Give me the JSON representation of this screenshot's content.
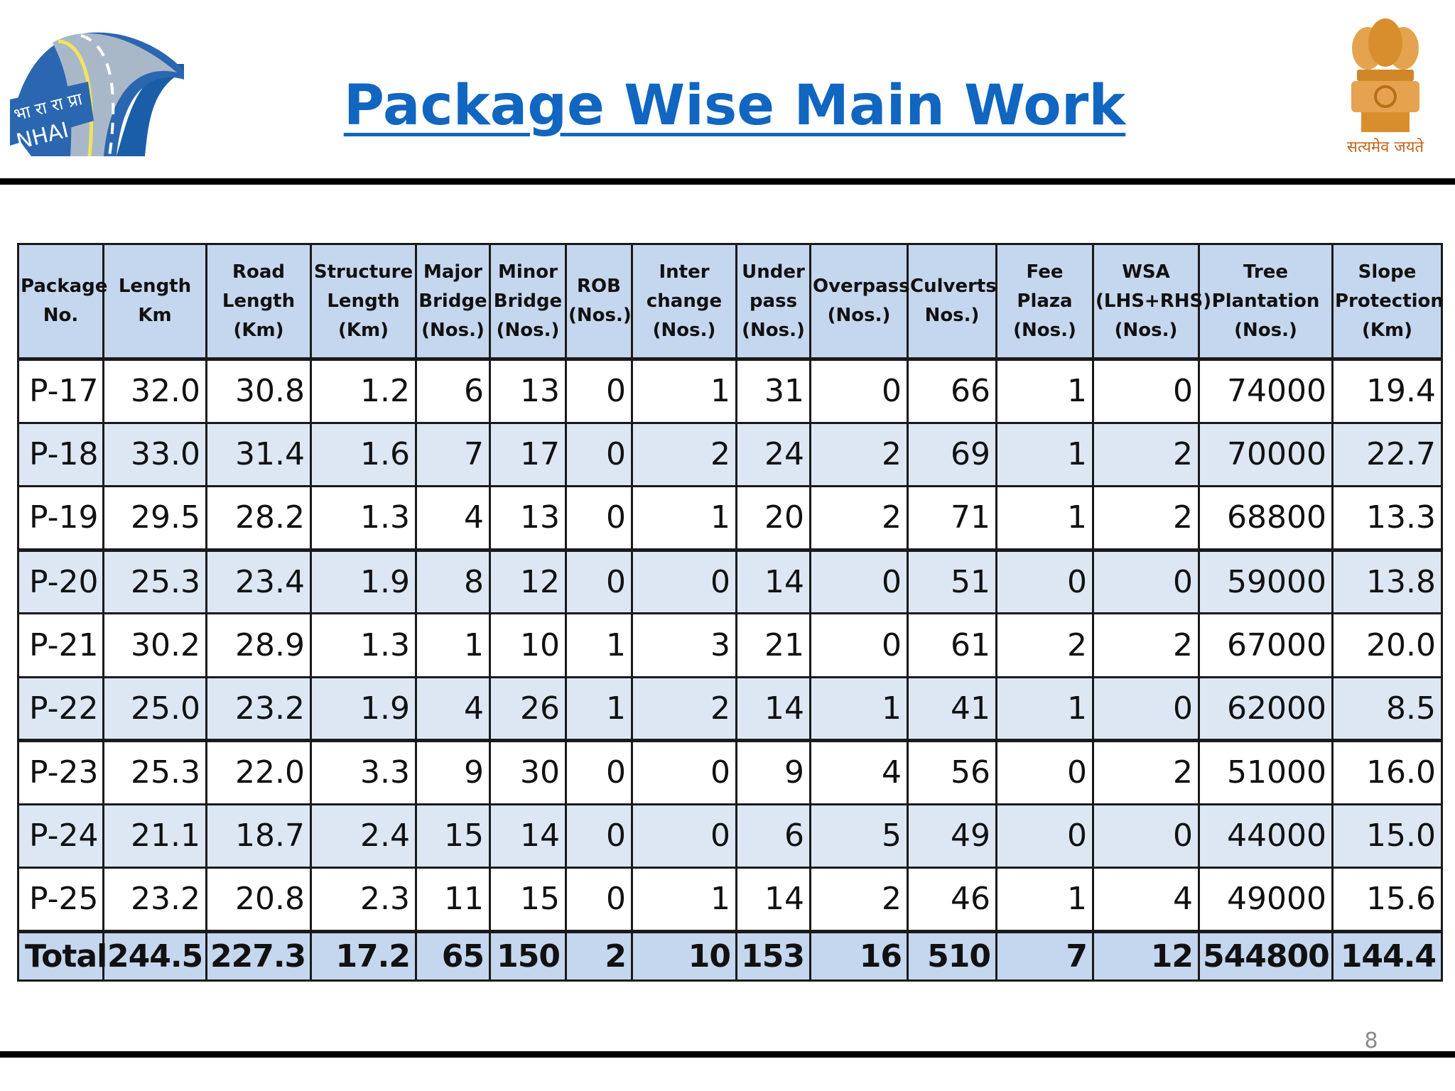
{
  "slide": {
    "title": "Package Wise Main Work",
    "page_number": "8",
    "logo_text": "भा रा रा प्रा NHAI",
    "emblem_motto": "सत्यमेव जयते",
    "colors": {
      "title": "#1066c0",
      "header_fill": "#c5d7ee",
      "row_band": "#dde7f4"
    }
  },
  "table": {
    "headers": [
      "Package No.",
      "Length Km",
      "Road Length (Km)",
      "Structure Length (Km)",
      "Major Bridge (Nos.)",
      "Minor Bridge (Nos.)",
      "ROB (Nos.)",
      "Inter change (Nos.)",
      "Under pass (Nos.)",
      "Overpass (Nos.)",
      "Culverts Nos.)",
      "Fee Plaza (Nos.)",
      "WSA (LHS+RHS) (Nos.)",
      "Tree Plantation (Nos.)",
      "Slope Protection (Km)"
    ],
    "rows": [
      [
        "P-17",
        "32.0",
        "30.8",
        "1.2",
        "6",
        "13",
        "0",
        "1",
        "31",
        "0",
        "66",
        "1",
        "0",
        "74000",
        "19.4"
      ],
      [
        "P-18",
        "33.0",
        "31.4",
        "1.6",
        "7",
        "17",
        "0",
        "2",
        "24",
        "2",
        "69",
        "1",
        "2",
        "70000",
        "22.7"
      ],
      [
        "P-19",
        "29.5",
        "28.2",
        "1.3",
        "4",
        "13",
        "0",
        "1",
        "20",
        "2",
        "71",
        "1",
        "2",
        "68800",
        "13.3"
      ],
      [
        "P-20",
        "25.3",
        "23.4",
        "1.9",
        "8",
        "12",
        "0",
        "0",
        "14",
        "0",
        "51",
        "0",
        "0",
        "59000",
        "13.8"
      ],
      [
        "P-21",
        "30.2",
        "28.9",
        "1.3",
        "1",
        "10",
        "1",
        "3",
        "21",
        "0",
        "61",
        "2",
        "2",
        "67000",
        "20.0"
      ],
      [
        "P-22",
        "25.0",
        "23.2",
        "1.9",
        "4",
        "26",
        "1",
        "2",
        "14",
        "1",
        "41",
        "1",
        "0",
        "62000",
        "8.5"
      ],
      [
        "P-23",
        "25.3",
        "22.0",
        "3.3",
        "9",
        "30",
        "0",
        "0",
        "9",
        "4",
        "56",
        "0",
        "2",
        "51000",
        "16.0"
      ],
      [
        "P-24",
        "21.1",
        "18.7",
        "2.4",
        "15",
        "14",
        "0",
        "0",
        "6",
        "5",
        "49",
        "0",
        "0",
        "44000",
        "15.0"
      ],
      [
        "P-25",
        "23.2",
        "20.8",
        "2.3",
        "11",
        "15",
        "0",
        "1",
        "14",
        "2",
        "46",
        "1",
        "4",
        "49000",
        "15.6"
      ]
    ],
    "total": [
      "Total",
      "244.5",
      "227.3",
      "17.2",
      "65",
      "150",
      "2",
      "10",
      "153",
      "16",
      "510",
      "7",
      "12",
      "544800",
      "144.4"
    ]
  }
}
